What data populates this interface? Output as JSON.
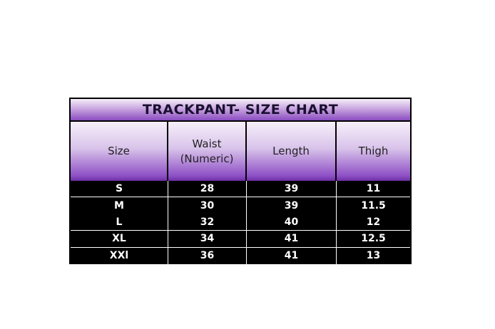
{
  "title": "TRACKPANT- SIZE CHART",
  "headers": [
    "Size",
    "Waist (Numeric)",
    "Length",
    "Thigh"
  ],
  "rows": [
    [
      "S",
      "28",
      "39",
      "11"
    ],
    [
      "M",
      "30",
      "39",
      "11.5"
    ],
    [
      "L",
      "32",
      "40",
      "12"
    ],
    [
      "XL",
      "34",
      "41",
      "12.5"
    ],
    [
      "XXl",
      "36",
      "41",
      "13"
    ]
  ],
  "colors": {
    "header_gradient_top": "#f4eef8",
    "header_gradient_bottom": "#7a3fb0",
    "body_bg": "#000000",
    "body_text": "#ffffff"
  }
}
